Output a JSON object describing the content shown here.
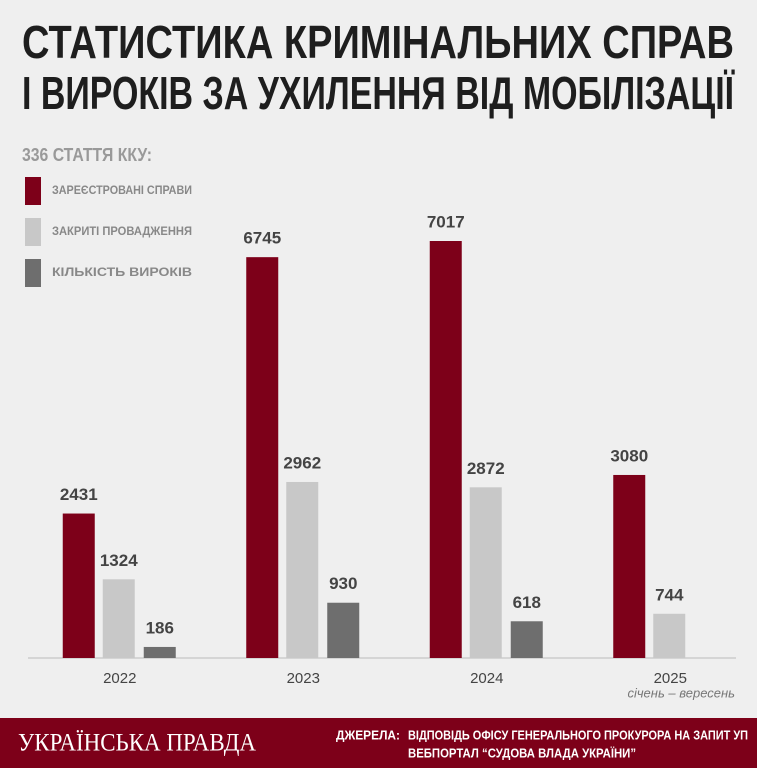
{
  "chart_data": {
    "type": "bar",
    "title": [
      "СТАТИСТИКА КРИМІНАЛЬНИХ СПРАВ",
      "І ВИРОКІВ ЗА УХИЛЕННЯ ВІД МОБІЛІЗАЦІЇ"
    ],
    "subtitle": "336 СТАТТЯ ККУ:",
    "categories": [
      "2022",
      "2023",
      "2024",
      "2025"
    ],
    "category_note": "січень – вересень",
    "series": [
      {
        "name": "ЗАРЕЄСТРОВАНІ СПРАВИ",
        "color": "#7d0019",
        "values": [
          2431,
          6745,
          7017,
          3080
        ]
      },
      {
        "name": "ЗАКРИТІ ПРОВАДЖЕННЯ",
        "color": "#c8c8c8",
        "values": [
          1324,
          2962,
          2872,
          744
        ]
      },
      {
        "name": "КІЛЬКІСТЬ ВИРОКІВ",
        "color": "#6e6e6e",
        "values": [
          186,
          930,
          618,
          null
        ]
      }
    ]
  },
  "footer": {
    "logo": "УКРАЇНСЬКА ПРАВДА",
    "sources_label": "ДЖЕРЕЛА:",
    "sources": [
      "ВІДПОВІДЬ ОФІСУ ГЕНЕРАЛЬНОГО ПРОКУРОРА НА ЗАПИТ УП",
      "ВЕБПОРТАЛ “СУДОВА ВЛАДА УКРАЇНИ”"
    ]
  }
}
